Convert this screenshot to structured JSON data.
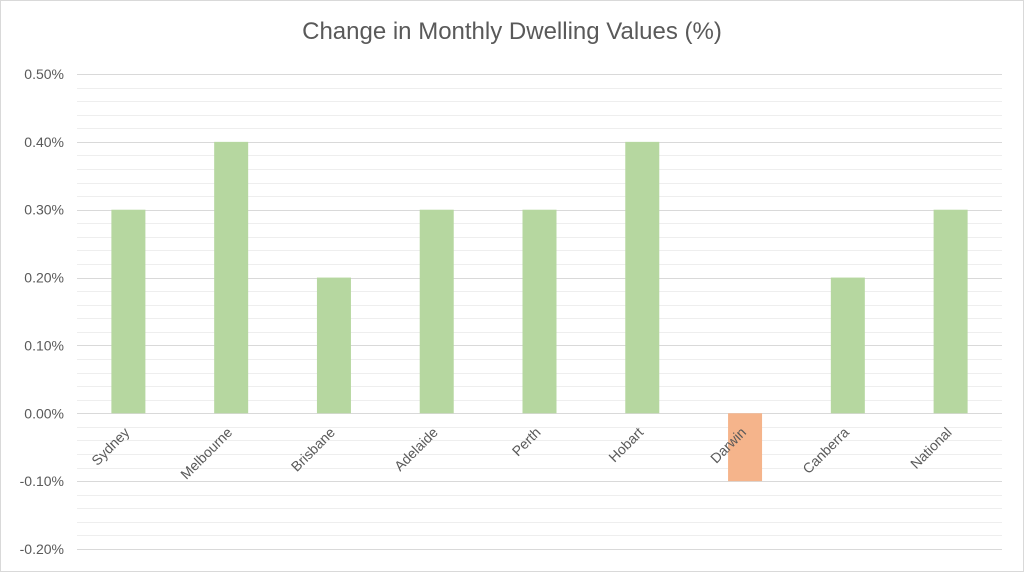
{
  "chart_data": {
    "type": "bar",
    "title": "Change in Monthly Dwelling Values (%)",
    "xlabel": "",
    "ylabel": "",
    "categories": [
      "Sydney",
      "Melbourne",
      "Brisbane",
      "Adelaide",
      "Perth",
      "Hobart",
      "Darwin",
      "Canberra",
      "National"
    ],
    "values": [
      0.3,
      0.4,
      0.2,
      0.3,
      0.3,
      0.4,
      -0.1,
      0.2,
      0.3
    ],
    "ylim": [
      -0.2,
      0.5
    ],
    "yticks": [
      "0.50%",
      "0.40%",
      "0.30%",
      "0.20%",
      "0.10%",
      "0.00%",
      "-0.10%",
      "-0.20%"
    ],
    "grid": true,
    "legend": "none",
    "colors": {
      "positive": "#b6d7a0",
      "negative": "#f5b48b",
      "major_grid": "#d9d9d9",
      "minor_grid": "#eeeeee",
      "text": "#595959"
    }
  }
}
